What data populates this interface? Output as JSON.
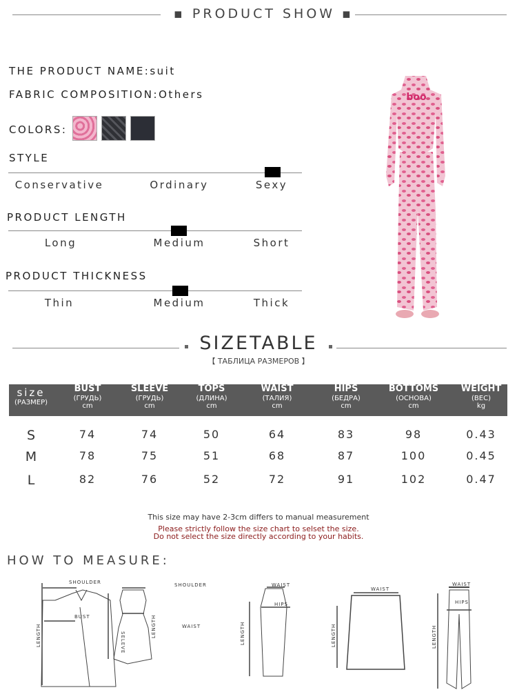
{
  "header": {
    "title": "PRODUCT SHOW"
  },
  "product": {
    "name_label": "THE PRODUCT NAME:",
    "name_value": "suit",
    "fabric_label": "FABRIC COMPOSITION:",
    "fabric_value": "Others",
    "colors_label": "COLORS:",
    "colors": [
      {
        "name": "pink-leopard",
        "hex": "#e98fb0"
      },
      {
        "name": "dark-pattern",
        "hex": "#3c3d42"
      },
      {
        "name": "black",
        "hex": "#2c2e36"
      }
    ]
  },
  "scales": [
    {
      "title": "STYLE",
      "options": [
        "Conservative",
        "Ordinary",
        "Sexy"
      ],
      "selected": "Sexy"
    },
    {
      "title": "PRODUCT LENGTH",
      "options": [
        "Long",
        "Medium",
        "Short"
      ],
      "selected": "Medium"
    },
    {
      "title": "PRODUCT THICKNESS",
      "options": [
        "Thin",
        "Medium",
        "Thick"
      ],
      "selected": "Medium"
    }
  ],
  "sizetable": {
    "title": "SIZETABLE",
    "subtitle": "【 ТАБЛИЦА РАЗМЕРОВ 】",
    "headers": [
      {
        "main": "size",
        "sub": "(РАЗМЕР)",
        "unit": ""
      },
      {
        "main": "BUST",
        "sub": "(ГРУДЬ)",
        "unit": "cm"
      },
      {
        "main": "SLEEVE",
        "sub": "(ГРУДЬ)",
        "unit": "cm"
      },
      {
        "main": "TOPS",
        "sub": "(ДЛИНА)",
        "unit": "cm"
      },
      {
        "main": "WAIST",
        "sub": "(ТАЛИЯ)",
        "unit": "cm"
      },
      {
        "main": "HIPS",
        "sub": "(БЕДРА)",
        "unit": "cm"
      },
      {
        "main": "BOTTOMS",
        "sub": "(ОСНОВА)",
        "unit": "cm"
      },
      {
        "main": "WEIGHT",
        "sub": "(ВЕС)",
        "unit": "kg"
      }
    ],
    "rows": [
      [
        "S",
        "74",
        "74",
        "50",
        "64",
        "83",
        "98",
        "0.43"
      ],
      [
        "M",
        "78",
        "75",
        "51",
        "68",
        "87",
        "100",
        "0.45"
      ],
      [
        "L",
        "82",
        "76",
        "52",
        "72",
        "91",
        "102",
        "0.47"
      ]
    ],
    "header_bg": "#5a5a5a"
  },
  "notes": {
    "line1": "This size may have 2-3cm differs to manual measurement",
    "line2": "Please strictly follow the size chart to selset the size.",
    "line3": "Do not select the size directly according to your habits.",
    "warn_color": "#8b1a1a"
  },
  "measure": {
    "title": "HOW TO MEASURE:",
    "labels": {
      "shoulder": "SHOULDER",
      "bust": "BUST",
      "length": "LENGTH",
      "sleeve": "SELEVE",
      "waist": "WAIST",
      "hips": "HIPS"
    }
  }
}
